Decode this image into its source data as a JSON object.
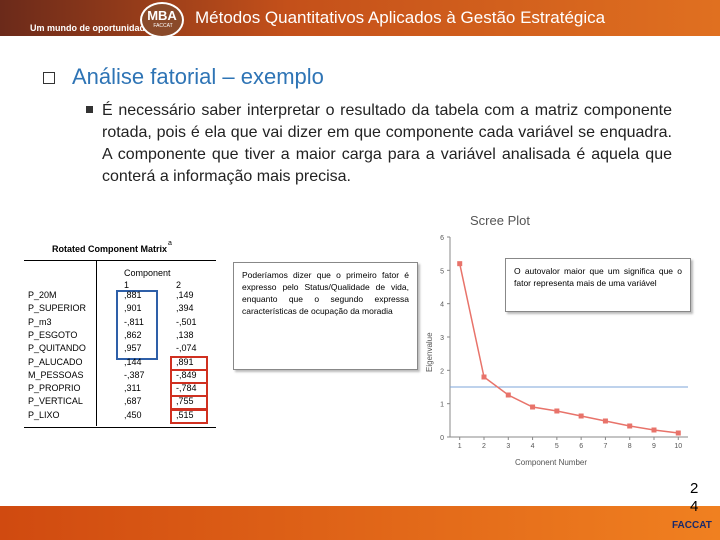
{
  "header": {
    "tagline": "Um mundo de oportunidades",
    "logo": "MBA",
    "logo_sub": "FACCAT",
    "title": "Métodos Quantitativos Aplicados à Gestão Estratégica"
  },
  "heading": "Análise fatorial – exemplo",
  "bullet": "É necessário saber interpretar o resultado da tabela com a matriz componente rotada, pois é ela que vai dizer em que componente cada variável se enquadra.  A componente que tiver a maior carga para a variável analisada é aquela que conterá a informação mais precisa.",
  "table": {
    "title": "Rotated Component Matrix",
    "note": "a",
    "group_header": "Component",
    "columns": [
      "1",
      "2"
    ],
    "rows": [
      [
        "P_20M",
        ",881",
        ",149"
      ],
      [
        "P_SUPERIOR",
        ",901",
        ",394"
      ],
      [
        "P_m3",
        "-,811",
        "-,501"
      ],
      [
        "P_ESGOTO",
        ",862",
        ",138"
      ],
      [
        "P_QUITANDO",
        ",957",
        "-,074"
      ],
      [
        "P_ALUCADO",
        ",144",
        ",891"
      ],
      [
        "M_PESSOAS",
        "-,387",
        "-,849"
      ],
      [
        "P_PROPRIO",
        ",311",
        "-,784"
      ],
      [
        "P_VERTICAL",
        ",687",
        ",755"
      ],
      [
        "P_LIXO",
        ",450",
        ",515"
      ]
    ]
  },
  "callouts": [
    "Poderíamos dizer que o primeiro fator é expresso pelo Status/Qualidade de vida, enquanto que o segundo expressa características de ocupação da moradia",
    "O autovalor maior que um significa que o fator representa mais de uma variável"
  ],
  "chart_data": {
    "type": "line",
    "title": "Scree Plot",
    "x_label": "Component Number",
    "y_label": "Eigenvalue",
    "x": [
      1,
      2,
      3,
      4,
      5,
      6,
      7,
      8,
      9,
      10
    ],
    "values": [
      5.2,
      1.8,
      1.26,
      0.9,
      0.78,
      0.63,
      0.48,
      0.33,
      0.21,
      0.12
    ],
    "color": "#e8736a",
    "reference_line": 1.5,
    "reference_color": "#7ea6d8",
    "xlim": [
      0.6,
      10.4
    ],
    "ylim": [
      0,
      6
    ],
    "xticks": [
      1,
      2,
      3,
      4,
      5,
      6,
      7,
      8,
      9,
      10
    ],
    "yticks": [
      0,
      1,
      2,
      3,
      4,
      5,
      6
    ]
  },
  "page_number": "24",
  "footer_logo": "FACCAT"
}
